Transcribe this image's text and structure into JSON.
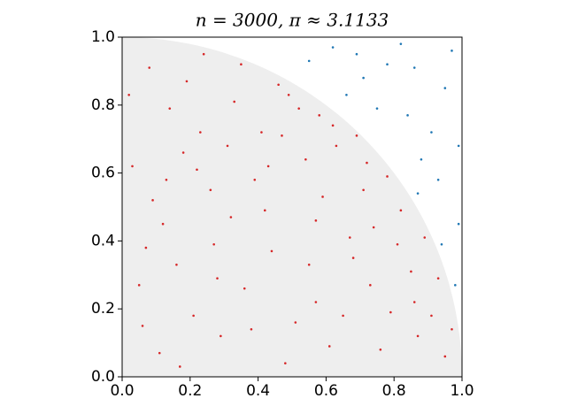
{
  "chart_data": {
    "type": "scatter",
    "title": "n = 3000, π ≈ 3.1133",
    "xlim": [
      0,
      1
    ],
    "ylim": [
      0,
      1
    ],
    "xticks": [
      {
        "value": 0,
        "label": "0.0"
      },
      {
        "value": 0.2,
        "label": "0.2"
      },
      {
        "value": 0.4,
        "label": "0.4"
      },
      {
        "value": 0.6,
        "label": "0.6"
      },
      {
        "value": 0.8,
        "label": "0.8"
      },
      {
        "value": 1,
        "label": "1.0"
      }
    ],
    "yticks": [
      {
        "value": 0,
        "label": "0.0"
      },
      {
        "value": 0.2,
        "label": "0.2"
      },
      {
        "value": 0.4,
        "label": "0.4"
      },
      {
        "value": 0.6,
        "label": "0.6"
      },
      {
        "value": 0.8,
        "label": "0.8"
      },
      {
        "value": 1,
        "label": "1.0"
      }
    ],
    "series": [
      {
        "color": "#d62728",
        "x": [
          0.12,
          0.33,
          0.57,
          0.08,
          0.71,
          0.44,
          0.29,
          0.85,
          0.63,
          0.18,
          0.52,
          0.05,
          0.39,
          0.91,
          0.76,
          0.24,
          0.67,
          0.48,
          0.14,
          0.82,
          0.36,
          0.59,
          0.03,
          0.27,
          0.73,
          0.46,
          0.95,
          0.21,
          0.54,
          0.11,
          0.69,
          0.31,
          0.87,
          0.42,
          0.16,
          0.61,
          0.78,
          0.35,
          0.09,
          0.55,
          0.26,
          0.93,
          0.47,
          0.65,
          0.19,
          0.81,
          0.38,
          0.02,
          0.58,
          0.74,
          0.23,
          0.51,
          0.86,
          0.13,
          0.43,
          0.68,
          0.07,
          0.62,
          0.32,
          0.89,
          0.17,
          0.49,
          0.72,
          0.28,
          0.97,
          0.41,
          0.06,
          0.57,
          0.22,
          0.79
        ],
        "values": [
          0.45,
          0.81,
          0.22,
          0.91,
          0.55,
          0.37,
          0.12,
          0.31,
          0.68,
          0.66,
          0.79,
          0.27,
          0.58,
          0.18,
          0.08,
          0.95,
          0.41,
          0.04,
          0.79,
          0.49,
          0.26,
          0.53,
          0.62,
          0.39,
          0.27,
          0.86,
          0.06,
          0.18,
          0.64,
          0.07,
          0.71,
          0.68,
          0.12,
          0.49,
          0.33,
          0.09,
          0.59,
          0.92,
          0.52,
          0.33,
          0.55,
          0.29,
          0.71,
          0.18,
          0.87,
          0.39,
          0.14,
          0.83,
          0.77,
          0.44,
          0.72,
          0.16,
          0.22,
          0.58,
          0.62,
          0.35,
          0.38,
          0.74,
          0.47,
          0.41,
          0.03,
          0.83,
          0.63,
          0.29,
          0.14,
          0.72,
          0.15,
          0.46,
          0.61,
          0.19
        ]
      },
      {
        "color": "#1f77b4",
        "x": [
          0.95,
          0.78,
          0.88,
          0.99,
          0.62,
          0.84,
          0.93,
          0.71,
          0.97,
          0.55,
          0.91,
          0.82,
          0.98,
          0.66,
          0.87,
          0.75,
          0.94,
          0.69,
          0.99,
          0.86
        ],
        "values": [
          0.85,
          0.92,
          0.64,
          0.45,
          0.97,
          0.77,
          0.58,
          0.88,
          0.96,
          0.93,
          0.72,
          0.98,
          0.27,
          0.83,
          0.54,
          0.79,
          0.39,
          0.95,
          0.68,
          0.91
        ]
      }
    ]
  }
}
